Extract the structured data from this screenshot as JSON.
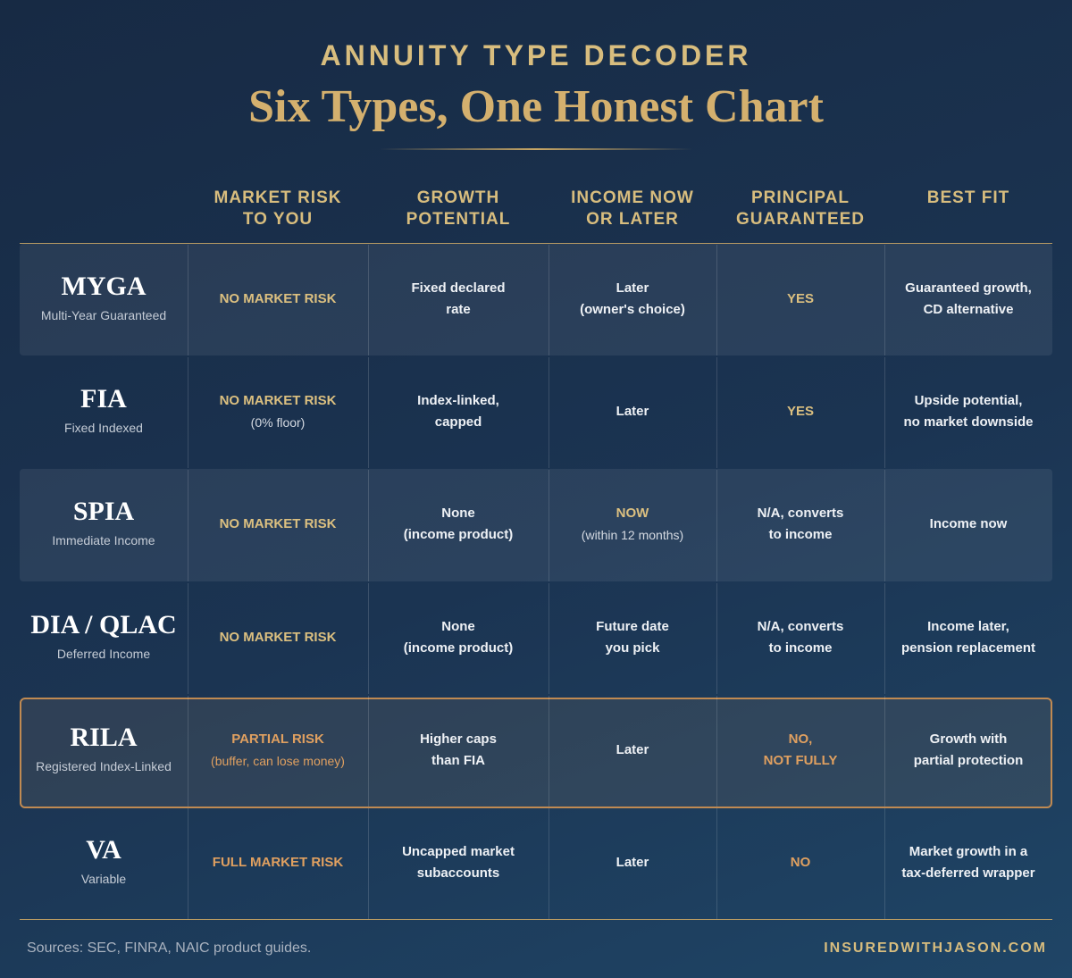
{
  "header": {
    "kicker": "ANNUITY TYPE DECODER",
    "title": "Six Types, One Honest Chart"
  },
  "table": {
    "columns": [
      [
        "MARKET RISK",
        "TO YOU"
      ],
      [
        "GROWTH",
        "POTENTIAL"
      ],
      [
        "INCOME NOW",
        "OR LATER"
      ],
      [
        "PRINCIPAL",
        "GUARANTEED"
      ],
      [
        "BEST FIT"
      ]
    ],
    "rows": [
      {
        "name": "MYGA",
        "subtitle": "Multi-Year Guaranteed",
        "cells": [
          [
            "NO MARKET RISK"
          ],
          [
            "Fixed declared",
            "rate"
          ],
          [
            "Later",
            "(owner's choice)"
          ],
          [
            "YES"
          ],
          [
            "Guaranteed growth,",
            "CD alternative"
          ]
        ]
      },
      {
        "name": "FIA",
        "subtitle": "Fixed Indexed",
        "cells": [
          [
            "NO MARKET RISK",
            "(0% floor)"
          ],
          [
            "Index-linked,",
            "capped"
          ],
          [
            "Later"
          ],
          [
            "YES"
          ],
          [
            "Upside potential,",
            "no market downside"
          ]
        ]
      },
      {
        "name": "SPIA",
        "subtitle": "Immediate Income",
        "cells": [
          [
            "NO MARKET RISK"
          ],
          [
            "None",
            "(income product)"
          ],
          [
            "NOW",
            "(within 12 months)"
          ],
          [
            "N/A, converts",
            "to income"
          ],
          [
            "Income now"
          ]
        ]
      },
      {
        "name": "DIA / QLAC",
        "subtitle": "Deferred Income",
        "cells": [
          [
            "NO MARKET RISK"
          ],
          [
            "None",
            "(income product)"
          ],
          [
            "Future date",
            "you pick"
          ],
          [
            "N/A, converts",
            "to income"
          ],
          [
            "Income later,",
            "pension replacement"
          ]
        ]
      },
      {
        "name": "RILA",
        "subtitle": "Registered Index-Linked",
        "cells": [
          [
            "PARTIAL RISK",
            "(buffer, can lose money)"
          ],
          [
            "Higher caps",
            "than FIA"
          ],
          [
            "Later"
          ],
          [
            "NO,",
            "NOT FULLY"
          ],
          [
            "Growth with",
            "partial protection"
          ]
        ]
      },
      {
        "name": "VA",
        "subtitle": "Variable",
        "cells": [
          [
            "FULL MARKET RISK"
          ],
          [
            "Uncapped market",
            "subaccounts"
          ],
          [
            "Later"
          ],
          [
            "NO"
          ],
          [
            "Market growth in a",
            "tax-deferred wrapper"
          ]
        ]
      }
    ]
  },
  "footer": {
    "sources": "Sources: SEC, FINRA, NAIC product guides.",
    "site": "INSUREDWITHJASON.COM"
  }
}
